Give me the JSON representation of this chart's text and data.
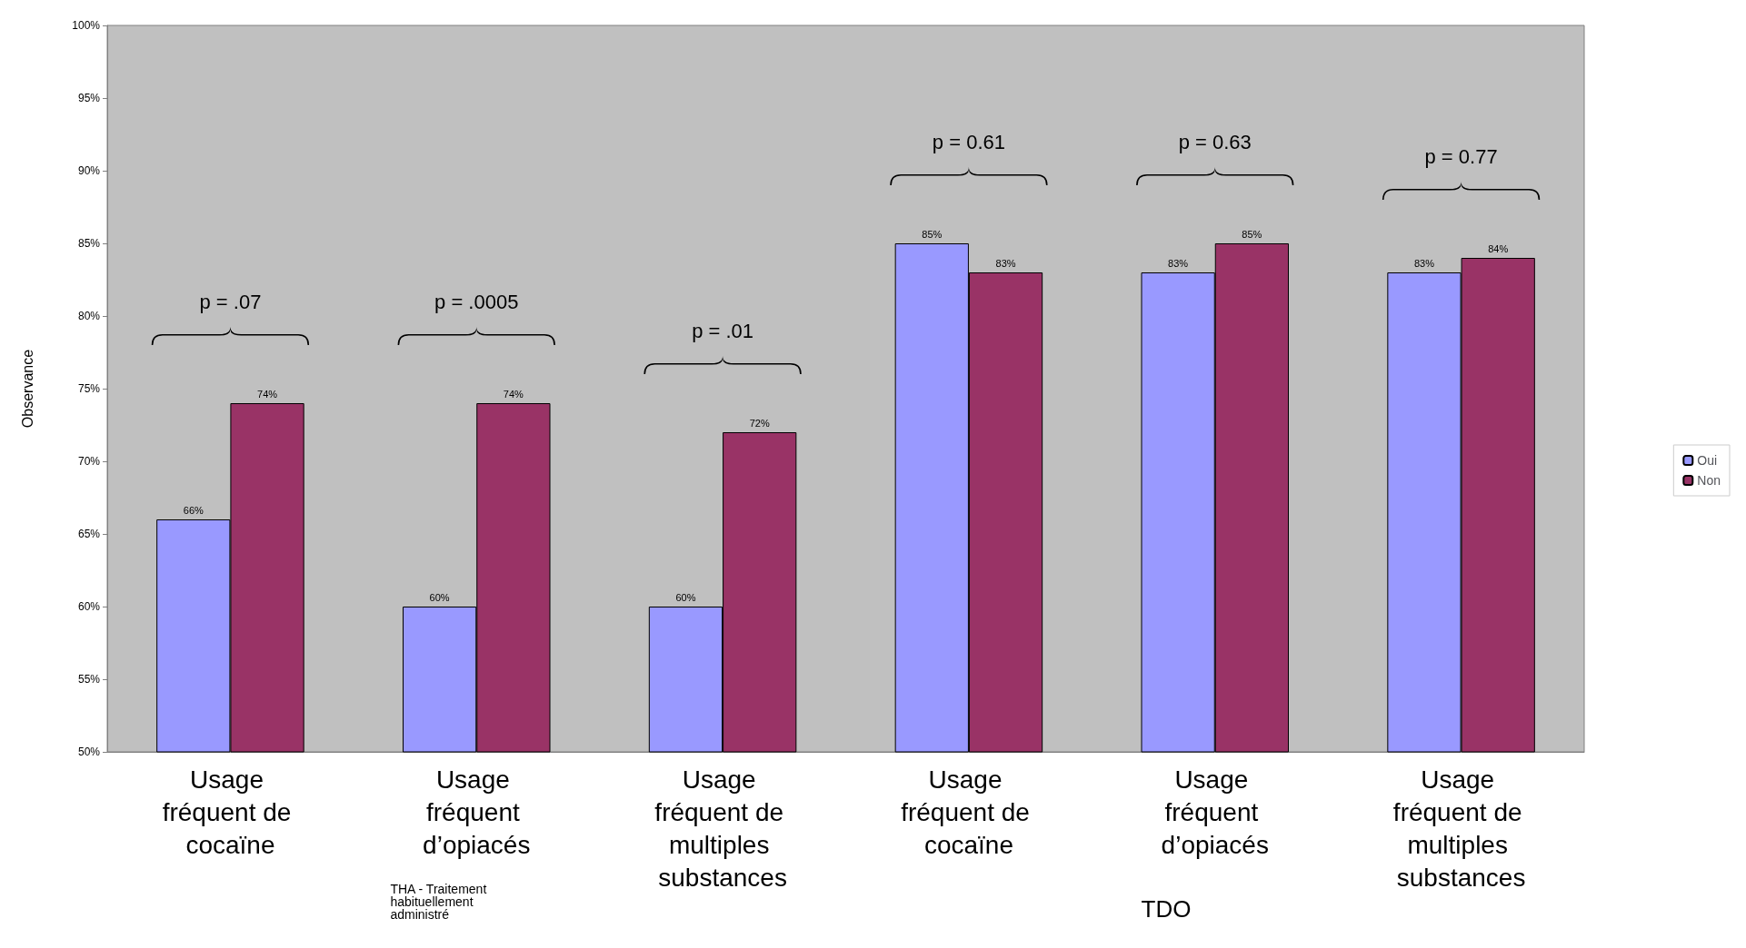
{
  "chart_data": {
    "type": "bar",
    "ylabel": "Observance",
    "categories": [
      "Usage fréquent de cocaïne",
      "Usage fréquent d’opiacés",
      "Usage fréquent de multiples substances",
      "Usage fréquent de cocaïne",
      "Usage fréquent d’opiacés",
      "Usage fréquent de multiples substances"
    ],
    "series": [
      {
        "name": "Oui",
        "color": "#9999ff",
        "values": [
          66,
          60,
          60,
          85,
          83,
          83
        ],
        "value_labels": [
          "66%",
          "60%",
          "60%",
          "85%",
          "83%",
          "83%"
        ]
      },
      {
        "name": "Non",
        "color": "#993366",
        "values": [
          74,
          74,
          72,
          83,
          85,
          84
        ],
        "value_labels": [
          "74%",
          "74%",
          "72%",
          "83%",
          "85%",
          "84%"
        ]
      }
    ],
    "ylim": [
      50,
      100
    ],
    "yticks": [
      {
        "value": 50,
        "label": "50%"
      },
      {
        "value": 55,
        "label": "55%"
      },
      {
        "value": 60,
        "label": "60%"
      },
      {
        "value": 65,
        "label": "65%"
      },
      {
        "value": 70,
        "label": "70%"
      },
      {
        "value": 75,
        "label": "75%"
      },
      {
        "value": 80,
        "label": "80%"
      },
      {
        "value": 85,
        "label": "85%"
      },
      {
        "value": 90,
        "label": "90%"
      },
      {
        "value": 95,
        "label": "95%"
      },
      {
        "value": 100,
        "label": "100%"
      }
    ],
    "grid": false,
    "legend": "right",
    "annotations": [
      "p = .07",
      "p = .0005",
      "p = .01",
      "p = 0.61",
      "p = 0.63",
      "p = 0.77",
      "THA - Traitement habituellement administré",
      "TDO"
    ]
  }
}
